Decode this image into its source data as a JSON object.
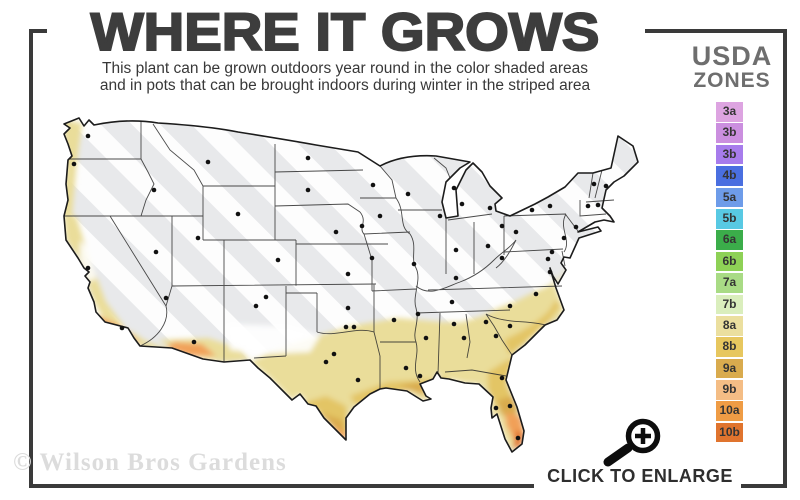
{
  "title": "WHERE IT GROWS",
  "subtitle_line1": "This plant can be grown outdoors year round in the color shaded areas",
  "subtitle_line2": "and in pots that can be brought indoors during winter in the striped area",
  "legend": {
    "heading_line1": "USDA",
    "heading_line2": "ZONES",
    "zones": [
      {
        "label": "3a",
        "color": "#dda4e1"
      },
      {
        "label": "3b",
        "color": "#cb8fdf"
      },
      {
        "label": "3b",
        "color": "#a77cec"
      },
      {
        "label": "4b",
        "color": "#4a6fe0"
      },
      {
        "label": "5a",
        "color": "#6e9ce9"
      },
      {
        "label": "5b",
        "color": "#58c9e3"
      },
      {
        "label": "6a",
        "color": "#3bad4a"
      },
      {
        "label": "6b",
        "color": "#8ed156"
      },
      {
        "label": "7a",
        "color": "#a9db85"
      },
      {
        "label": "7b",
        "color": "#daeebd"
      },
      {
        "label": "8a",
        "color": "#ebdf9f"
      },
      {
        "label": "8b",
        "color": "#e7c75f"
      },
      {
        "label": "9a",
        "color": "#d9ab4e"
      },
      {
        "label": "9b",
        "color": "#f4bd85"
      },
      {
        "label": "10a",
        "color": "#ef9c45"
      },
      {
        "label": "10b",
        "color": "#e0742e"
      }
    ]
  },
  "map": {
    "kind": "usda-zone-map",
    "shaded_meaning": "color shaded = grows outdoors year round",
    "striped_meaning": "striped = bring pots indoors during winter",
    "colors": {
      "base_gray": "#e8e9eb",
      "stripe": "#ffffff",
      "zone_yellow": "#eadd9a",
      "zone_gold": "#e3c565",
      "zone_amber": "#d9ab4e",
      "zone_orange": "#f1a059",
      "zone_deep_orange": "#e0742e",
      "border_line": "#1c1c1c"
    }
  },
  "watermark": "© Wilson Bros Gardens",
  "enlarge": {
    "label": "CLICK TO ENLARGE"
  },
  "frame_color": "#3a3a3a"
}
